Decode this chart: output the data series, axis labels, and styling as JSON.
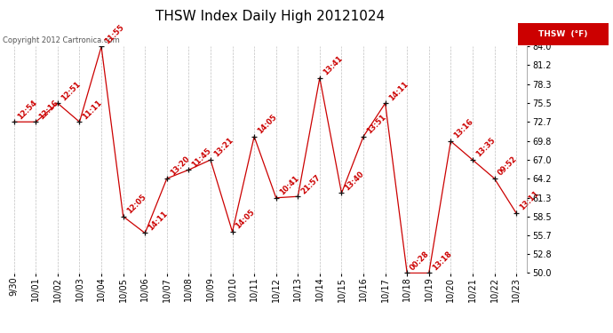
{
  "title": "THSW Index Daily High 20121024",
  "copyright": "Copyright 2012 Cartronica.com",
  "legend_label": "THSW  (°F)",
  "background_color": "#ffffff",
  "line_color": "#cc0000",
  "marker_color": "#111111",
  "grid_color": "#c0c0c0",
  "x_labels": [
    "9/30",
    "10/01",
    "10/02",
    "10/03",
    "10/04",
    "10/05",
    "10/06",
    "10/07",
    "10/08",
    "10/09",
    "10/10",
    "10/11",
    "10/12",
    "10/13",
    "10/14",
    "10/15",
    "10/16",
    "10/17",
    "10/18",
    "10/19",
    "10/20",
    "10/21",
    "10/22",
    "10/23"
  ],
  "y_values": [
    72.7,
    72.7,
    75.5,
    72.7,
    84.0,
    58.5,
    56.0,
    64.2,
    65.5,
    67.0,
    56.2,
    70.5,
    61.3,
    61.5,
    79.3,
    62.0,
    70.5,
    75.5,
    50.0,
    50.0,
    69.8,
    67.0,
    64.2,
    59.0
  ],
  "time_labels": [
    "12:54",
    "12:16",
    "12:51",
    "11:11",
    "11:55",
    "12:05",
    "14:11",
    "13:20",
    "11:45",
    "13:21",
    "14:05",
    "14:05",
    "10:41",
    "21:57",
    "13:41",
    "13:40",
    "13:51",
    "14:11",
    "00:28",
    "13:18",
    "13:16",
    "13:35",
    "09:52",
    "13:11"
  ],
  "ylim": [
    50.0,
    84.0
  ],
  "yticks": [
    50.0,
    52.8,
    55.7,
    58.5,
    61.3,
    64.2,
    67.0,
    69.8,
    72.7,
    75.5,
    78.3,
    81.2,
    84.0
  ],
  "title_fontsize": 11,
  "label_fontsize": 6,
  "tick_fontsize": 7,
  "copyright_fontsize": 6
}
